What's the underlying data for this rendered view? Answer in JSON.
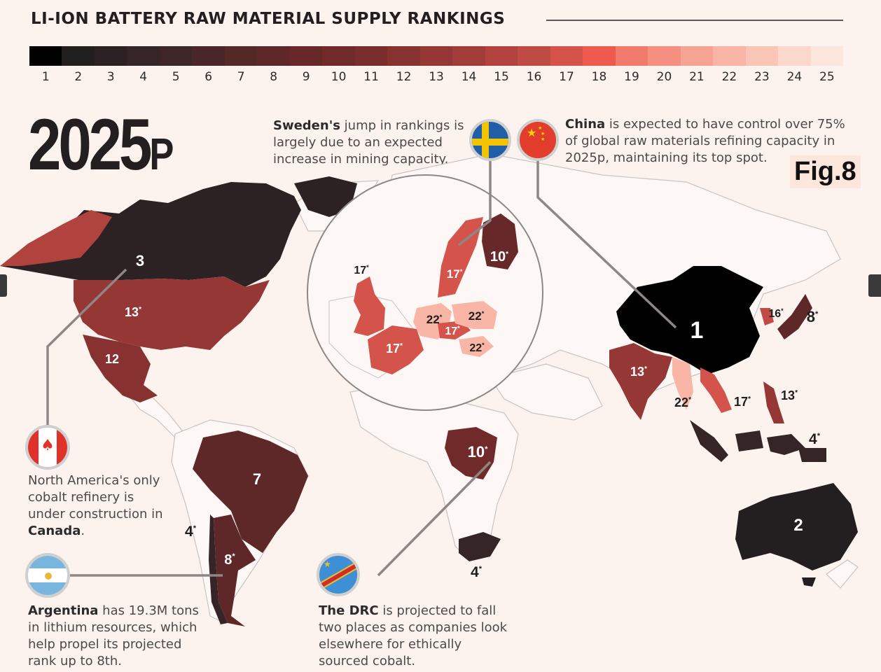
{
  "title": "LI-ION BATTERY RAW MATERIAL SUPPLY RANKINGS",
  "year": "2025",
  "year_suffix": "P",
  "fig_label": "Fig.8",
  "scale": {
    "labels": [
      "1",
      "2",
      "3",
      "4",
      "5",
      "6",
      "7",
      "8",
      "9",
      "10",
      "11",
      "12",
      "13",
      "14",
      "15",
      "16",
      "17",
      "18",
      "19",
      "20",
      "21",
      "22",
      "23",
      "24",
      "25"
    ],
    "colors": [
      "#000000",
      "#231f20",
      "#2c2223",
      "#362526",
      "#3e2527",
      "#492627",
      "#542728",
      "#5e2828",
      "#672829",
      "#702a2a",
      "#7a2d2d",
      "#873231",
      "#943735",
      "#a23c39",
      "#b0433e",
      "#c04a44",
      "#d4534b",
      "#ef5a50",
      "#f27a6d",
      "#f58f80",
      "#f7a393",
      "#f9b6a7",
      "#fbc6b8",
      "#fcd7cb",
      "#fde6dc"
    ]
  },
  "notes": {
    "sweden": {
      "bold": "Sweden's",
      "text": " jump in rankings is largely due to an expected increase in mining capacity."
    },
    "china": {
      "bold": "China",
      "text": " is expected to have control over 75% of global raw materials refining capacity in 2025p, maintaining its top spot."
    },
    "canada": {
      "text1": "North America's only cobalt refinery is under construction in ",
      "bold": "Canada",
      "text2": "."
    },
    "argentina": {
      "bold": "Argentina",
      "text": " has 19.3M tons in lithium resources, which help propel its projected rank up to 8th."
    },
    "drc": {
      "bold": "The DRC",
      "text": " is projected to fall two places as companies look elsewhere for ethically sourced cobalt."
    }
  },
  "flags": [
    "sweden-flag-icon",
    "china-flag-icon",
    "canada-flag-icon",
    "argentina-flag-icon",
    "drc-flag-icon"
  ],
  "ranks": {
    "canada": "3",
    "usa": "13",
    "usa_mark": "*",
    "mexico": "12",
    "brazil": "7",
    "chile": "4",
    "chile_mark": "*",
    "argentina": "8",
    "argentina_mark": "*",
    "drc": "10",
    "drc_mark": "*",
    "south_africa": "4",
    "south_africa_mark": "*",
    "china": "1",
    "india": "13",
    "india_mark": "*",
    "myanmar": "22",
    "myanmar_mark": "*",
    "vietnam": "17",
    "vietnam_mark": "*",
    "philippines": "13",
    "philippines_mark": "*",
    "indonesia": "4",
    "indonesia_mark": "*",
    "korea": "16",
    "korea_mark": "*",
    "japan": "8",
    "japan_mark": "*",
    "australia": "2",
    "uk": "17",
    "uk_mark": "*",
    "france": "17",
    "france_mark": "*",
    "germany": "22",
    "germany_mark": "*",
    "czech": "17",
    "czech_mark": "*",
    "poland": "22",
    "poland_mark": "*",
    "hungary": "22",
    "hungary_mark": "*",
    "sweden": "17",
    "sweden_mark": "*",
    "finland": "10",
    "finland_mark": "*"
  }
}
